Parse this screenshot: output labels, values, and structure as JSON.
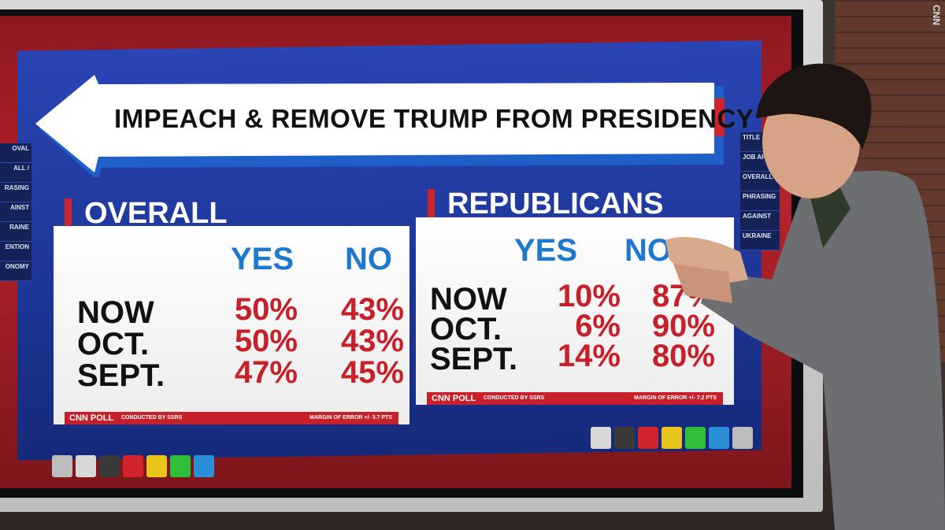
{
  "watermark": "CNN",
  "title": "IMPEACH & REMOVE TRUMP FROM PRESIDENCY",
  "panels": [
    {
      "heading": "OVERALL",
      "columns": [
        "YES",
        "NO"
      ],
      "rows": [
        {
          "label": "NOW",
          "values": [
            "50%",
            "43%"
          ]
        },
        {
          "label": "OCT.",
          "values": [
            "50%",
            "43%"
          ]
        },
        {
          "label": "SEPT.",
          "values": [
            "47%",
            "45%"
          ]
        }
      ],
      "footer": {
        "brand": "CNN POLL",
        "credit": "CONDUCTED BY SSRS",
        "margin": "MARGIN OF ERROR +/- 3.7 PTS"
      }
    },
    {
      "heading": "REPUBLICANS",
      "columns": [
        "YES",
        "NO"
      ],
      "rows": [
        {
          "label": "NOW",
          "values": [
            "10%",
            "87%"
          ]
        },
        {
          "label": "OCT.",
          "values": [
            "6%",
            "90%"
          ]
        },
        {
          "label": "SEPT.",
          "values": [
            "14%",
            "80%"
          ]
        }
      ],
      "footer": {
        "brand": "CNN POLL",
        "credit": "CONDUCTED BY SSRS",
        "margin": "MARGIN OF ERROR +/- 7.2 PTS"
      }
    }
  ],
  "left_menu": [
    "OVAL",
    "ALL /",
    "RASING",
    "AINST",
    "RAINE",
    "ENTION",
    "ONOMY"
  ],
  "right_menu": [
    "TITLE",
    "JOB APPROVAL",
    "OVERALL GOP",
    "PHRASING",
    "AGAINST",
    "UKRAINE"
  ]
}
